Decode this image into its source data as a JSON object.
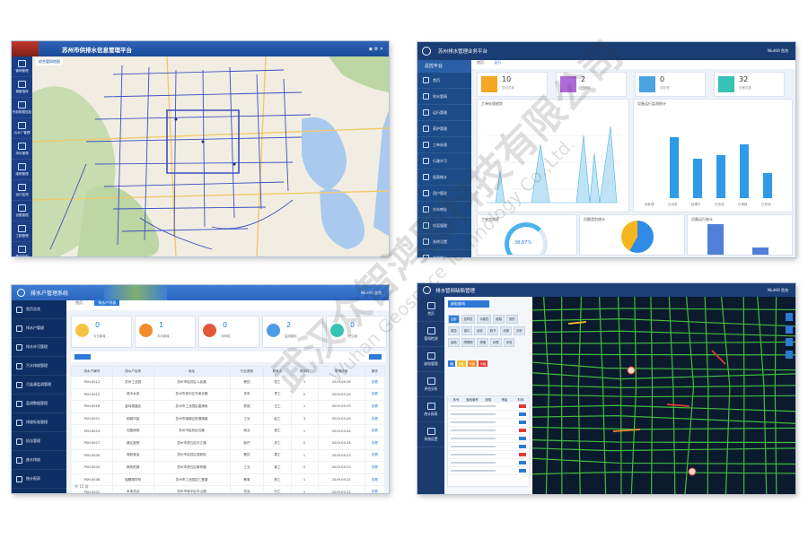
{
  "panel1": {
    "title": "苏州市供排水信息管理平台",
    "breadcrumb": "综合管网地图",
    "sidebar": [
      "管网管理",
      "调度指挥",
      "外部数据巡检",
      "污水厂管理",
      "排水管理",
      "维修管理",
      "运行监测",
      "设备管理",
      "工程管理",
      "移动应用",
      "点单调度"
    ]
  },
  "panel2": {
    "title": "苏州排水管理业务平台",
    "sidebar_header": "总控平台",
    "user": "NiuHUI 鱼泡",
    "tabs": [
      "首页",
      "运行"
    ],
    "sidebar": [
      "首页",
      "排水管网",
      "运行管理",
      "养护管理",
      "工单处理",
      "行政许可",
      "报表统计",
      "用户管理",
      "排水审批",
      "档案管理",
      "系统设置",
      "工单统计"
    ],
    "stats": [
      {
        "num": "10",
        "label": "项目总数",
        "color": "#f5a623"
      },
      {
        "num": "2",
        "label": "已完成",
        "color": "#b06ad8"
      },
      {
        "num": "0",
        "label": "待处理",
        "color": "#4aa3df"
      },
      {
        "num": "32",
        "label": "设备总数",
        "color": "#36c2b4"
      }
    ],
    "chart_titles": [
      "工单处理趋势",
      "设备运行监测统计",
      "工单完成率",
      "问题类别统计",
      "设备运行统计"
    ],
    "donut_value": "38.87%",
    "bar_labels": [
      "待处理",
      "已派发",
      "处理中",
      "已完成",
      "已审核",
      "已关闭"
    ]
  },
  "panel3": {
    "title": "排水户管理系统",
    "user": "NiuHUI 鱼泡",
    "tabs": [
      "首页",
      "排水户列表"
    ],
    "sidebar": [
      "首页总览",
      "排水户管理",
      "排水许可管理",
      "污水排放管理",
      "污染源监测管理",
      "监测数据管理",
      "排放标准管理",
      "执法管理",
      "废水排放",
      "统计报表",
      "系统设置"
    ],
    "kpis": [
      {
        "num": "0",
        "label": "今日新增",
        "color": "#f5c342"
      },
      {
        "num": "1",
        "label": "本月新增",
        "color": "#f08a2a"
      },
      {
        "num": "0",
        "label": "待审批",
        "color": "#e4583a"
      },
      {
        "num": "2",
        "label": "监测超标",
        "color": "#4f9be8"
      },
      {
        "num": "0",
        "label": "已注销",
        "color": "#36c2b4"
      }
    ],
    "columns": [
      "排水户编号",
      "排水户名称",
      "地址",
      "行业类别",
      "联系人",
      "排放口",
      "申请时间",
      "操作"
    ],
    "rows": [
      [
        "PSH-0012",
        "苏州工业园",
        "苏州市姑苏区人民路",
        "餐饮",
        "张工",
        "1",
        "2019-09-26",
        "查看"
      ],
      [
        "PSH-0015",
        "吴中水务",
        "苏州市吴中区东吴北路",
        "洗车",
        "李工",
        "2",
        "2019-09-26",
        "查看"
      ],
      [
        "PSH-0018",
        "金鸡湖酒店",
        "苏州市工业园区星港街",
        "宾馆",
        "王工",
        "1",
        "2019-09-25",
        "查看"
      ],
      [
        "PSH-0021",
        "相城印染",
        "苏州市相城区阳澄湖路",
        "工业",
        "赵工",
        "3",
        "2019-09-25",
        "查看"
      ],
      [
        "PSH-0023",
        "石路商场",
        "苏州市姑苏区石路",
        "商业",
        "钱工",
        "1",
        "2019-09-24",
        "查看"
      ],
      [
        "PSH-0027",
        "新区医院",
        "苏州市虎丘区长江路",
        "医疗",
        "孙工",
        "2",
        "2019-09-24",
        "查看"
      ],
      [
        "PSH-0030",
        "观前食品",
        "苏州市姑苏区观前街",
        "餐饮",
        "周工",
        "1",
        "2019-09-23",
        "查看"
      ],
      [
        "PSH-0034",
        "枫桥机械",
        "苏州市虎丘区枫桥路",
        "工业",
        "吴工",
        "2",
        "2019-09-23",
        "查看"
      ],
      [
        "PSH-0036",
        "独墅湖学校",
        "苏州市工业园区仁爱路",
        "教育",
        "郑工",
        "1",
        "2019-09-22",
        "查看"
      ],
      [
        "PSH-0041",
        "木渎洗浴",
        "苏州市吴中区中山路",
        "洗浴",
        "冯工",
        "1",
        "2019-09-22",
        "查看"
      ],
      [
        "PSH-0044",
        "浒关电子",
        "苏州市虎丘区浒杨路",
        "工业",
        "陈工",
        "2",
        "2019-09-21",
        "查看"
      ],
      [
        "PSH-0047",
        "平江宾馆",
        "苏州市姑苏区平江路",
        "宾馆",
        "楮工",
        "1",
        "2019-09-21",
        "查看"
      ]
    ],
    "pager": "共 12 条"
  },
  "panel4": {
    "title": "排水管网缺陷管理",
    "user": "NiuHUI 鱼泡",
    "sidebar": [
      "首页",
      "管网检测",
      "缺陷管理",
      "评估分析",
      "统计报表",
      "系统设置"
    ],
    "filter_title": "缺陷查询",
    "chips": [
      "全部",
      "结构性",
      "功能性",
      "破裂",
      "变形",
      "腐蚀",
      "错口",
      "起伏",
      "脱节",
      "渗漏",
      "沉积",
      "结垢",
      "障碍物",
      "残墙",
      "树根",
      "浮渣"
    ],
    "levels": [
      "I级",
      "II级",
      "III级",
      "IV级"
    ],
    "level_colors": [
      "#2d7ad6",
      "#f2c230",
      "#f08a2a",
      "#e23a3a"
    ],
    "list_header": [
      "序号",
      "管段编号",
      "缺陷",
      "等级",
      "时间"
    ]
  },
  "watermark": {
    "cn": "武汉众智鸿图科技有限公司",
    "en": "Wuhan Geospace Technology Co.,Ltd."
  }
}
